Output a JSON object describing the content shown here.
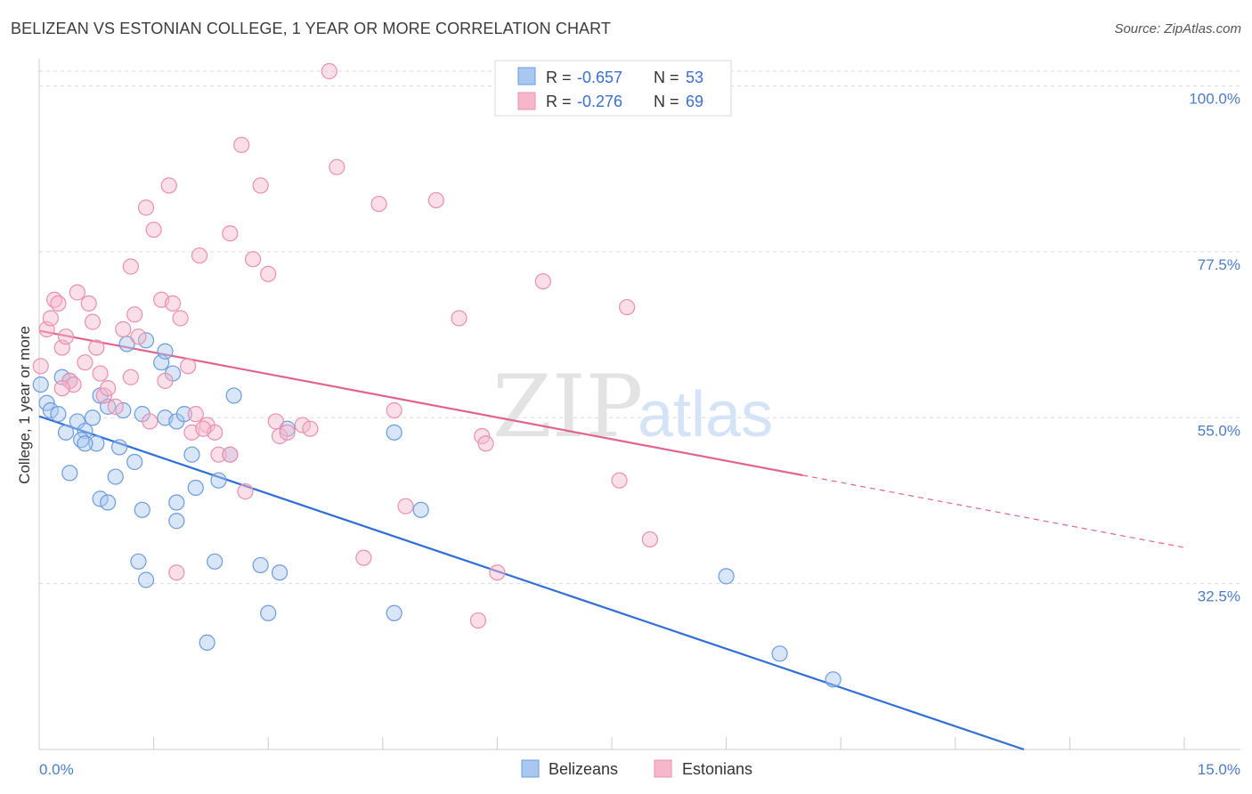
{
  "title": "BELIZEAN VS ESTONIAN COLLEGE, 1 YEAR OR MORE CORRELATION CHART",
  "source": "Source: ZipAtlas.com",
  "watermark": {
    "zip": "ZIP",
    "atlas": "atlas"
  },
  "colors": {
    "blue_fill": "#a9c8f0",
    "blue_stroke": "#6b9be0",
    "blue_line": "#2f6fd6",
    "pink_fill": "#f6b7cb",
    "pink_stroke": "#eb8fae",
    "pink_line": "#e0648f",
    "grid": "#d8dbe0",
    "axis_text": "#4a7cc9"
  },
  "legend": {
    "rows": [
      {
        "r_label": "R = ",
        "r_value": "-0.657",
        "n_label": "N = ",
        "n_value": "53"
      },
      {
        "r_label": "R = ",
        "r_value": "-0.276",
        "n_label": "N = ",
        "n_value": "69"
      }
    ]
  },
  "chart_data": {
    "type": "scatter",
    "ylabel": "College, 1 year or more",
    "xlim": [
      0,
      15
    ],
    "ylim": [
      10,
      102
    ],
    "y_ticks": [
      32.5,
      55.0,
      77.5,
      100.0
    ],
    "y_tick_labels": [
      "32.5%",
      "55.0%",
      "77.5%",
      "100.0%"
    ],
    "x_tick_labels": [
      "0.0%",
      "15.0%"
    ],
    "grid": true,
    "series": [
      {
        "name": "Belizeans",
        "color": "#6b9be0",
        "trend": {
          "x": [
            0.0,
            12.9
          ],
          "y": [
            55.2,
            10.0
          ],
          "dashed_to": null
        },
        "points": [
          {
            "x": 0.02,
            "y": 59.5
          },
          {
            "x": 0.1,
            "y": 57.0
          },
          {
            "x": 0.15,
            "y": 56.0
          },
          {
            "x": 0.25,
            "y": 55.5
          },
          {
            "x": 0.3,
            "y": 60.5
          },
          {
            "x": 0.35,
            "y": 53.0
          },
          {
            "x": 0.4,
            "y": 60.0
          },
          {
            "x": 0.5,
            "y": 54.5
          },
          {
            "x": 0.6,
            "y": 53.2
          },
          {
            "x": 0.7,
            "y": 55.0
          },
          {
            "x": 0.75,
            "y": 51.5
          },
          {
            "x": 0.8,
            "y": 58.0
          },
          {
            "x": 0.9,
            "y": 56.5
          },
          {
            "x": 0.55,
            "y": 52.0
          },
          {
            "x": 0.6,
            "y": 51.5
          },
          {
            "x": 1.05,
            "y": 51.0
          },
          {
            "x": 1.1,
            "y": 56.0
          },
          {
            "x": 1.15,
            "y": 65.0
          },
          {
            "x": 1.25,
            "y": 49.0
          },
          {
            "x": 1.35,
            "y": 55.5
          },
          {
            "x": 1.4,
            "y": 65.5
          },
          {
            "x": 1.6,
            "y": 62.5
          },
          {
            "x": 1.65,
            "y": 55.0
          },
          {
            "x": 1.8,
            "y": 54.5
          },
          {
            "x": 1.9,
            "y": 55.5
          },
          {
            "x": 0.4,
            "y": 47.5
          },
          {
            "x": 0.8,
            "y": 44.0
          },
          {
            "x": 0.9,
            "y": 43.5
          },
          {
            "x": 1.0,
            "y": 47.0
          },
          {
            "x": 1.3,
            "y": 35.5
          },
          {
            "x": 1.4,
            "y": 33.0
          },
          {
            "x": 1.35,
            "y": 42.5
          },
          {
            "x": 1.75,
            "y": 61.0
          },
          {
            "x": 2.0,
            "y": 50.0
          },
          {
            "x": 2.05,
            "y": 45.5
          },
          {
            "x": 1.8,
            "y": 43.5
          },
          {
            "x": 1.8,
            "y": 41.0
          },
          {
            "x": 2.2,
            "y": 24.5
          },
          {
            "x": 2.3,
            "y": 35.5
          },
          {
            "x": 2.35,
            "y": 46.5
          },
          {
            "x": 2.5,
            "y": 50.0
          },
          {
            "x": 2.55,
            "y": 58.0
          },
          {
            "x": 2.9,
            "y": 35.0
          },
          {
            "x": 3.0,
            "y": 28.5
          },
          {
            "x": 3.15,
            "y": 34.0
          },
          {
            "x": 3.25,
            "y": 53.5
          },
          {
            "x": 4.65,
            "y": 28.5
          },
          {
            "x": 4.65,
            "y": 53.0
          },
          {
            "x": 5.0,
            "y": 42.5
          },
          {
            "x": 9.0,
            "y": 33.5
          },
          {
            "x": 9.7,
            "y": 23.0
          },
          {
            "x": 10.4,
            "y": 19.5
          },
          {
            "x": 1.65,
            "y": 64.0
          }
        ]
      },
      {
        "name": "Estonians",
        "color": "#eb8fae",
        "trend": {
          "x": [
            0.0,
            10.0
          ],
          "y": [
            66.8,
            47.2
          ],
          "dashed_to": {
            "x": 15.0,
            "y": 37.4
          }
        },
        "points": [
          {
            "x": 0.02,
            "y": 62.0
          },
          {
            "x": 0.1,
            "y": 67.0
          },
          {
            "x": 0.15,
            "y": 68.5
          },
          {
            "x": 0.2,
            "y": 71.0
          },
          {
            "x": 0.25,
            "y": 70.5
          },
          {
            "x": 0.3,
            "y": 64.5
          },
          {
            "x": 0.35,
            "y": 66.0
          },
          {
            "x": 0.4,
            "y": 60.0
          },
          {
            "x": 0.45,
            "y": 59.5
          },
          {
            "x": 0.5,
            "y": 72.0
          },
          {
            "x": 0.6,
            "y": 62.5
          },
          {
            "x": 0.65,
            "y": 70.5
          },
          {
            "x": 0.7,
            "y": 68.0
          },
          {
            "x": 0.75,
            "y": 64.5
          },
          {
            "x": 0.8,
            "y": 61.0
          },
          {
            "x": 0.85,
            "y": 58.0
          },
          {
            "x": 0.9,
            "y": 59.0
          },
          {
            "x": 1.0,
            "y": 56.5
          },
          {
            "x": 1.1,
            "y": 67.0
          },
          {
            "x": 1.2,
            "y": 75.5
          },
          {
            "x": 1.25,
            "y": 69.0
          },
          {
            "x": 1.3,
            "y": 66.0
          },
          {
            "x": 1.4,
            "y": 83.5
          },
          {
            "x": 1.45,
            "y": 54.5
          },
          {
            "x": 1.5,
            "y": 80.5
          },
          {
            "x": 1.6,
            "y": 71.0
          },
          {
            "x": 1.65,
            "y": 60.0
          },
          {
            "x": 1.7,
            "y": 86.5
          },
          {
            "x": 1.75,
            "y": 70.5
          },
          {
            "x": 1.85,
            "y": 68.5
          },
          {
            "x": 1.8,
            "y": 34.0
          },
          {
            "x": 2.0,
            "y": 53.0
          },
          {
            "x": 2.05,
            "y": 55.5
          },
          {
            "x": 2.1,
            "y": 77.0
          },
          {
            "x": 2.2,
            "y": 54.0
          },
          {
            "x": 2.3,
            "y": 53.0
          },
          {
            "x": 2.35,
            "y": 50.0
          },
          {
            "x": 2.5,
            "y": 80.0
          },
          {
            "x": 2.65,
            "y": 92.0
          },
          {
            "x": 2.7,
            "y": 45.0
          },
          {
            "x": 2.8,
            "y": 76.5
          },
          {
            "x": 2.9,
            "y": 86.5
          },
          {
            "x": 3.0,
            "y": 74.5
          },
          {
            "x": 3.1,
            "y": 54.5
          },
          {
            "x": 3.15,
            "y": 52.5
          },
          {
            "x": 3.25,
            "y": 53.0
          },
          {
            "x": 3.45,
            "y": 54.0
          },
          {
            "x": 3.8,
            "y": 102.0
          },
          {
            "x": 3.9,
            "y": 89.0
          },
          {
            "x": 4.25,
            "y": 36.0
          },
          {
            "x": 4.45,
            "y": 84.0
          },
          {
            "x": 4.65,
            "y": 56.0
          },
          {
            "x": 4.8,
            "y": 43.0
          },
          {
            "x": 5.2,
            "y": 84.5
          },
          {
            "x": 5.5,
            "y": 68.5
          },
          {
            "x": 5.75,
            "y": 27.5
          },
          {
            "x": 5.8,
            "y": 52.5
          },
          {
            "x": 5.85,
            "y": 51.5
          },
          {
            "x": 6.0,
            "y": 34.0
          },
          {
            "x": 6.6,
            "y": 73.5
          },
          {
            "x": 7.6,
            "y": 46.5
          },
          {
            "x": 7.7,
            "y": 70.0
          },
          {
            "x": 8.0,
            "y": 38.5
          },
          {
            "x": 2.5,
            "y": 50.0
          },
          {
            "x": 1.95,
            "y": 62.0
          },
          {
            "x": 3.55,
            "y": 53.5
          },
          {
            "x": 0.3,
            "y": 59.0
          },
          {
            "x": 1.2,
            "y": 60.5
          },
          {
            "x": 2.15,
            "y": 53.5
          }
        ]
      }
    ]
  }
}
